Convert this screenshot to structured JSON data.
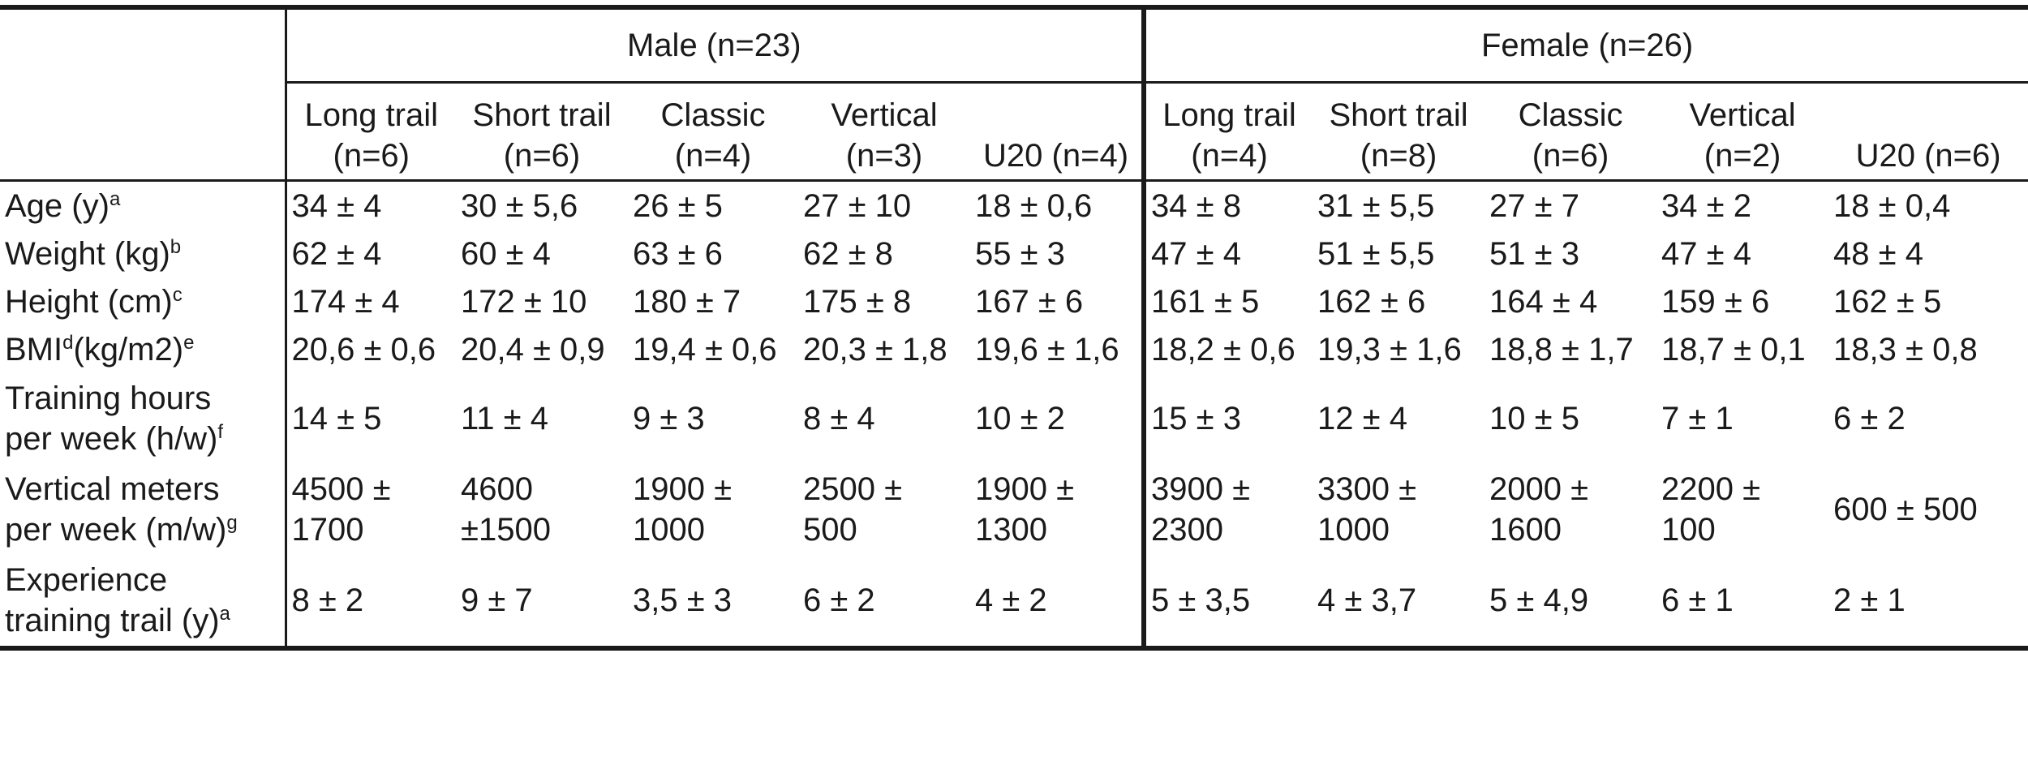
{
  "groups": [
    {
      "label": "Male (n=23)"
    },
    {
      "label": "Female (n=26)"
    }
  ],
  "subgroups": [
    {
      "line1": "Long trail",
      "line2": "(n=6)"
    },
    {
      "line1": "Short trail",
      "line2": "(n=6)"
    },
    {
      "line1": "Classic",
      "line2": "(n=4)"
    },
    {
      "line1": "Vertical",
      "line2": "(n=3)"
    },
    {
      "line1": "",
      "line2": "U20 (n=4)"
    },
    {
      "line1": "Long trail",
      "line2": "(n=4)"
    },
    {
      "line1": "Short trail",
      "line2": "(n=8)"
    },
    {
      "line1": "Classic",
      "line2": "(n=6)"
    },
    {
      "line1": "Vertical",
      "line2": "(n=2)"
    },
    {
      "line1": "",
      "line2": "U20 (n=6)"
    }
  ],
  "rows": [
    {
      "label1": "Age (y)",
      "sup1": "a",
      "label2": "",
      "sup2": "",
      "values": [
        "34 ± 4",
        "30 ± 5,6",
        "26 ± 5",
        "27 ± 10",
        "18 ± 0,6",
        "34 ± 8",
        "31 ± 5,5",
        "27 ± 7",
        "34 ± 2",
        "18 ± 0,4"
      ]
    },
    {
      "label1": "Weight (kg)",
      "sup1": "b",
      "label2": "",
      "sup2": "",
      "values": [
        "62 ± 4",
        "60 ± 4",
        "63 ± 6",
        "62 ± 8",
        "55 ± 3",
        "47 ± 4",
        "51 ± 5,5",
        "51 ± 3",
        "47 ± 4",
        "48 ± 4"
      ]
    },
    {
      "label1": "Height (cm)",
      "sup1": "c",
      "label2": "",
      "sup2": "",
      "values": [
        "174 ± 4",
        "172 ± 10",
        "180 ± 7",
        "175 ± 8",
        "167 ± 6",
        "161 ± 5",
        "162 ± 6",
        "164 ± 4",
        "159 ± 6",
        "162 ± 5"
      ]
    },
    {
      "label1": "BMI",
      "sup1": "d",
      "label1b": "(kg/m2)",
      "sup1b": "e",
      "values": [
        "20,6 ± 0,6",
        "20,4 ± 0,9",
        "19,4 ± 0,6",
        "20,3 ± 1,8",
        "19,6 ± 1,6",
        "18,2 ± 0,6",
        "19,3 ± 1,6",
        "18,8 ± 1,7",
        "18,7 ± 0,1",
        "18,3 ± 0,8"
      ]
    },
    {
      "label1": "Training hours",
      "label2": "per week (h/w)",
      "sup2": "f",
      "values": [
        "14 ± 5",
        "11 ± 4",
        "9 ± 3",
        "8 ± 4",
        "10 ± 2",
        "15 ± 3",
        "12 ± 4",
        "10 ± 5",
        "7 ± 1",
        "6 ± 2"
      ]
    },
    {
      "label1": "Vertical meters",
      "label2": "per week (m/w)",
      "sup2": "g",
      "values": [
        {
          "a": "4500 ±",
          "b": "1700"
        },
        {
          "a": "4600",
          "b": "±1500"
        },
        {
          "a": "1900 ±",
          "b": "1000"
        },
        {
          "a": "2500 ±",
          "b": "500"
        },
        {
          "a": "1900 ±",
          "b": "1300"
        },
        {
          "a": "3900 ±",
          "b": "2300"
        },
        {
          "a": "3300 ±",
          "b": "1000"
        },
        {
          "a": "2000 ±",
          "b": "1600"
        },
        {
          "a": "2200 ±",
          "b": "100"
        },
        "600 ± 500"
      ]
    },
    {
      "label1": "Experience",
      "label2": "training trail (y)",
      "sup2": "a",
      "values": [
        "8 ± 2",
        "9 ± 7",
        "3,5 ± 3",
        "6 ± 2",
        "4 ± 2",
        "5 ± 3,5",
        "4 ± 3,7",
        "5 ± 4,9",
        "6 ± 1",
        "2 ± 1"
      ]
    }
  ]
}
